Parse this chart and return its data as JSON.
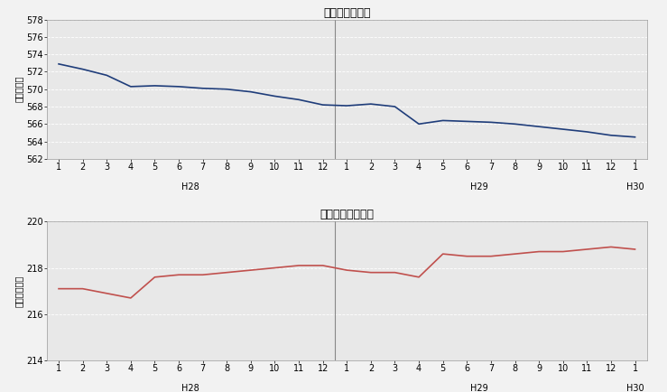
{
  "title1": "推計人口の推移",
  "title2": "推計世帯数の推移",
  "ylabel1": "（人千人）",
  "ylabel2": "（世帯千戸）",
  "pop_data": [
    572.9,
    572.3,
    571.6,
    570.3,
    570.4,
    570.3,
    570.1,
    570.0,
    569.7,
    569.2,
    568.8,
    568.2,
    568.1,
    568.3,
    568.0,
    566.0,
    566.4,
    566.3,
    566.2,
    566.0,
    565.7,
    565.4,
    565.1,
    564.7,
    564.5
  ],
  "hh_data": [
    217.1,
    217.1,
    216.9,
    216.7,
    217.6,
    217.7,
    217.7,
    217.8,
    217.9,
    218.0,
    218.1,
    218.1,
    217.9,
    217.8,
    217.8,
    217.6,
    218.6,
    218.5,
    218.5,
    218.6,
    218.7,
    218.7,
    218.8,
    218.9,
    218.8
  ],
  "pop_ylim": [
    562,
    578
  ],
  "pop_yticks": [
    562,
    564,
    566,
    568,
    570,
    572,
    574,
    576,
    578
  ],
  "hh_ylim": [
    214,
    220
  ],
  "hh_yticks": [
    214,
    216,
    218,
    220
  ],
  "pop_color": "#1f3d7a",
  "hh_color": "#c0504d",
  "bg_color": "#e8e8e8",
  "fig_bg_color": "#f2f2f2",
  "grid_color": "#ffffff",
  "separator_color": "#888888"
}
